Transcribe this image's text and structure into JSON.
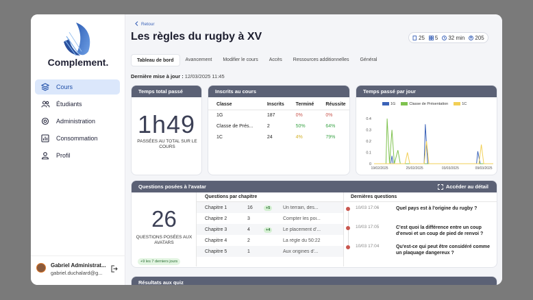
{
  "brand": {
    "name": "Complement."
  },
  "nav": [
    {
      "label": "Cours",
      "icon": "layers-icon",
      "active": true
    },
    {
      "label": "Étudiants",
      "icon": "users-icon",
      "active": false
    },
    {
      "label": "Administration",
      "icon": "gear-icon",
      "active": false
    },
    {
      "label": "Consommation",
      "icon": "bar-chart-icon",
      "active": false
    },
    {
      "label": "Profil",
      "icon": "user-icon",
      "active": false
    }
  ],
  "user": {
    "name": "Gabriel Administrat...",
    "email": "gabriel.duchalard@g..."
  },
  "header": {
    "back": "Retour",
    "title": "Les règles du rugby à XV",
    "stats": {
      "pages": "25",
      "chapters": "5",
      "duration": "32 min",
      "students": "205"
    }
  },
  "tabs": [
    "Tableau de bord",
    "Avancement",
    "Modifier le cours",
    "Accès",
    "Ressources additionnelles",
    "Général"
  ],
  "updated": {
    "label": "Dernière mise à jour :",
    "value": "12/03/2025 11:45"
  },
  "time_card": {
    "title": "Temps total passé",
    "value": "1h49",
    "sub": "PASSÉES AU TOTAL SUR LE COURS"
  },
  "enrolled": {
    "title": "Inscrits au cours",
    "headers": [
      "Classe",
      "Inscrits",
      "Terminé",
      "Réussite"
    ],
    "rows": [
      {
        "classe": "1G",
        "inscrits": "187",
        "termine": "0%",
        "reussite": "0%",
        "tcolor": "red",
        "rcolor": "red"
      },
      {
        "classe": "Classe de Prés...",
        "inscrits": "2",
        "termine": "50%",
        "reussite": "64%",
        "tcolor": "green",
        "rcolor": "green"
      },
      {
        "classe": "1C",
        "inscrits": "24",
        "termine": "4%",
        "reussite": "79%",
        "tcolor": "yellow",
        "rcolor": "green"
      }
    ]
  },
  "time_per_day": {
    "title": "Temps passé par jour",
    "colors": {
      "g1": "#3b63b8",
      "pres": "#7fc24f",
      "c1": "#f2cf55"
    }
  },
  "chart_data": {
    "type": "line",
    "x": [
      "19/02/2025",
      "25/02/2025",
      "03/03/2025",
      "09/03/2025"
    ],
    "y_ticks": [
      "0.4",
      "0.3",
      "0.2",
      "0.1",
      "0"
    ],
    "ylim": [
      0,
      0.45
    ],
    "series": [
      {
        "name": "1G",
        "points": [
          [
            0.0,
            0.0
          ],
          [
            0.14,
            0.0
          ],
          [
            0.15,
            0.07
          ],
          [
            0.16,
            0.0
          ],
          [
            0.42,
            0.0
          ],
          [
            0.43,
            0.35
          ],
          [
            0.45,
            0.0
          ],
          [
            0.86,
            0.0
          ],
          [
            0.87,
            0.11
          ],
          [
            0.89,
            0.0
          ],
          [
            1.0,
            0.0
          ]
        ]
      },
      {
        "name": "Classe de Présentation",
        "points": [
          [
            0.0,
            0.0
          ],
          [
            0.1,
            0.0
          ],
          [
            0.11,
            0.4
          ],
          [
            0.13,
            0.0
          ],
          [
            0.15,
            0.3
          ],
          [
            0.17,
            0.0
          ],
          [
            0.2,
            0.12
          ],
          [
            0.22,
            0.0
          ],
          [
            1.0,
            0.0
          ]
        ]
      },
      {
        "name": "1C",
        "points": [
          [
            0.0,
            0.0
          ],
          [
            0.26,
            0.0
          ],
          [
            0.28,
            0.1
          ],
          [
            0.3,
            0.0
          ],
          [
            0.42,
            0.0
          ],
          [
            0.44,
            0.2
          ],
          [
            0.46,
            0.0
          ],
          [
            0.88,
            0.0
          ],
          [
            0.9,
            0.17
          ],
          [
            0.92,
            0.0
          ],
          [
            1.0,
            0.0
          ]
        ]
      }
    ]
  },
  "questions": {
    "title": "Questions posées à l'avatar",
    "detail": "Accéder au détail",
    "count": "26",
    "count_label": "QUESTIONS POSÉES AUX AVATARS",
    "badge": "+9 les 7 derniers jours",
    "chapters_title": "Questions par chapitre",
    "chapters": [
      {
        "name": "Chapitre 1",
        "n": "16",
        "badge": "+5",
        "text": "Un terrain, des..."
      },
      {
        "name": "Chapitre 2",
        "n": "3",
        "badge": "",
        "text": "Compter les poi..."
      },
      {
        "name": "Chapitre 3",
        "n": "4",
        "badge": "+4",
        "text": "Le placement d'..."
      },
      {
        "name": "Chapitre 4",
        "n": "2",
        "badge": "",
        "text": "La règle du 50:22"
      },
      {
        "name": "Chapitre 5",
        "n": "1",
        "badge": "",
        "text": "Aux origines d'..."
      }
    ],
    "latest_title": "Dernières questions",
    "latest": [
      {
        "time": "10/03 17:06",
        "q": "Quel pays est à l'origine du rugby ?"
      },
      {
        "time": "10/03 17:05",
        "q": "C'est quoi la différence entre un coup d'envoi et un coup de pied de renvoi ?"
      },
      {
        "time": "10/03 17:04",
        "q": "Qu'est-ce qui peut être considéré comme un plaquage dangereux ?"
      }
    ]
  },
  "quiz": {
    "title": "Résultats aux quiz"
  }
}
